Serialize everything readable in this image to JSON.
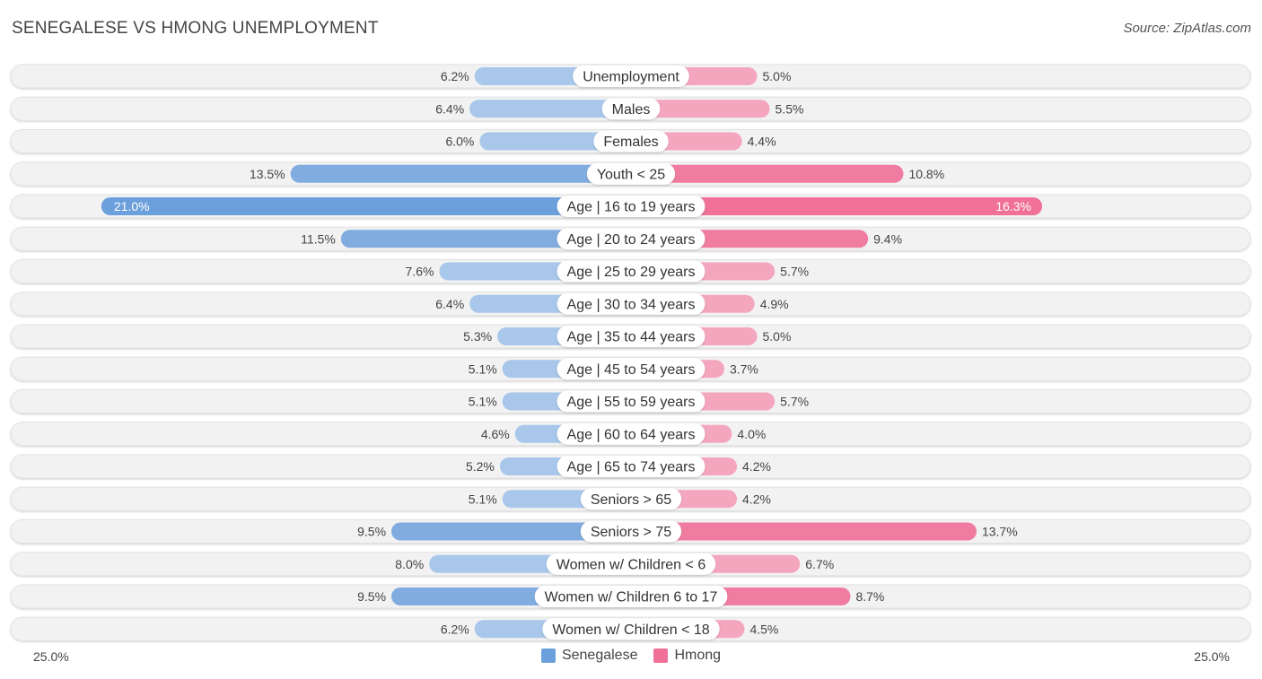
{
  "title": "SENEGALESE VS HMONG UNEMPLOYMENT",
  "source": "Source: ZipAtlas.com",
  "colors": {
    "senegalese": "#6ca0dc",
    "senegalese_light": "#a8c7ea",
    "hmong": "#f07098",
    "hmong_light": "#f5a6bf"
  },
  "chart_data": {
    "type": "bar",
    "orientation": "horizontal-diverging",
    "title": "SENEGALESE VS HMONG UNEMPLOYMENT",
    "axis_min_label": "25.0%",
    "axis_max_label": "25.0%",
    "xlim": [
      0,
      25
    ],
    "categories": [
      "Unemployment",
      "Males",
      "Females",
      "Youth < 25",
      "Age | 16 to 19 years",
      "Age | 20 to 24 years",
      "Age | 25 to 29 years",
      "Age | 30 to 34 years",
      "Age | 35 to 44 years",
      "Age | 45 to 54 years",
      "Age | 55 to 59 years",
      "Age | 60 to 64 years",
      "Age | 65 to 74 years",
      "Seniors > 65",
      "Seniors > 75",
      "Women w/ Children < 6",
      "Women w/ Children 6 to 17",
      "Women w/ Children < 18"
    ],
    "series": [
      {
        "name": "Senegalese",
        "values": [
          6.2,
          6.4,
          6.0,
          13.5,
          21.0,
          11.5,
          7.6,
          6.4,
          5.3,
          5.1,
          5.1,
          4.6,
          5.2,
          5.1,
          9.5,
          8.0,
          9.5,
          6.2
        ],
        "labels": [
          "6.2%",
          "6.4%",
          "6.0%",
          "13.5%",
          "21.0%",
          "11.5%",
          "7.6%",
          "6.4%",
          "5.3%",
          "5.1%",
          "5.1%",
          "4.6%",
          "5.2%",
          "5.1%",
          "9.5%",
          "8.0%",
          "9.5%",
          "6.2%"
        ]
      },
      {
        "name": "Hmong",
        "values": [
          5.0,
          5.5,
          4.4,
          10.8,
          16.3,
          9.4,
          5.7,
          4.9,
          5.0,
          3.7,
          5.7,
          4.0,
          4.2,
          4.2,
          13.7,
          6.7,
          8.7,
          4.5
        ],
        "labels": [
          "5.0%",
          "5.5%",
          "4.4%",
          "10.8%",
          "16.3%",
          "9.4%",
          "5.7%",
          "4.9%",
          "5.0%",
          "3.7%",
          "5.7%",
          "4.0%",
          "4.2%",
          "4.2%",
          "13.7%",
          "6.7%",
          "8.7%",
          "4.5%"
        ]
      }
    ],
    "legend": [
      "Senegalese",
      "Hmong"
    ],
    "legend_position": "bottom-center"
  }
}
